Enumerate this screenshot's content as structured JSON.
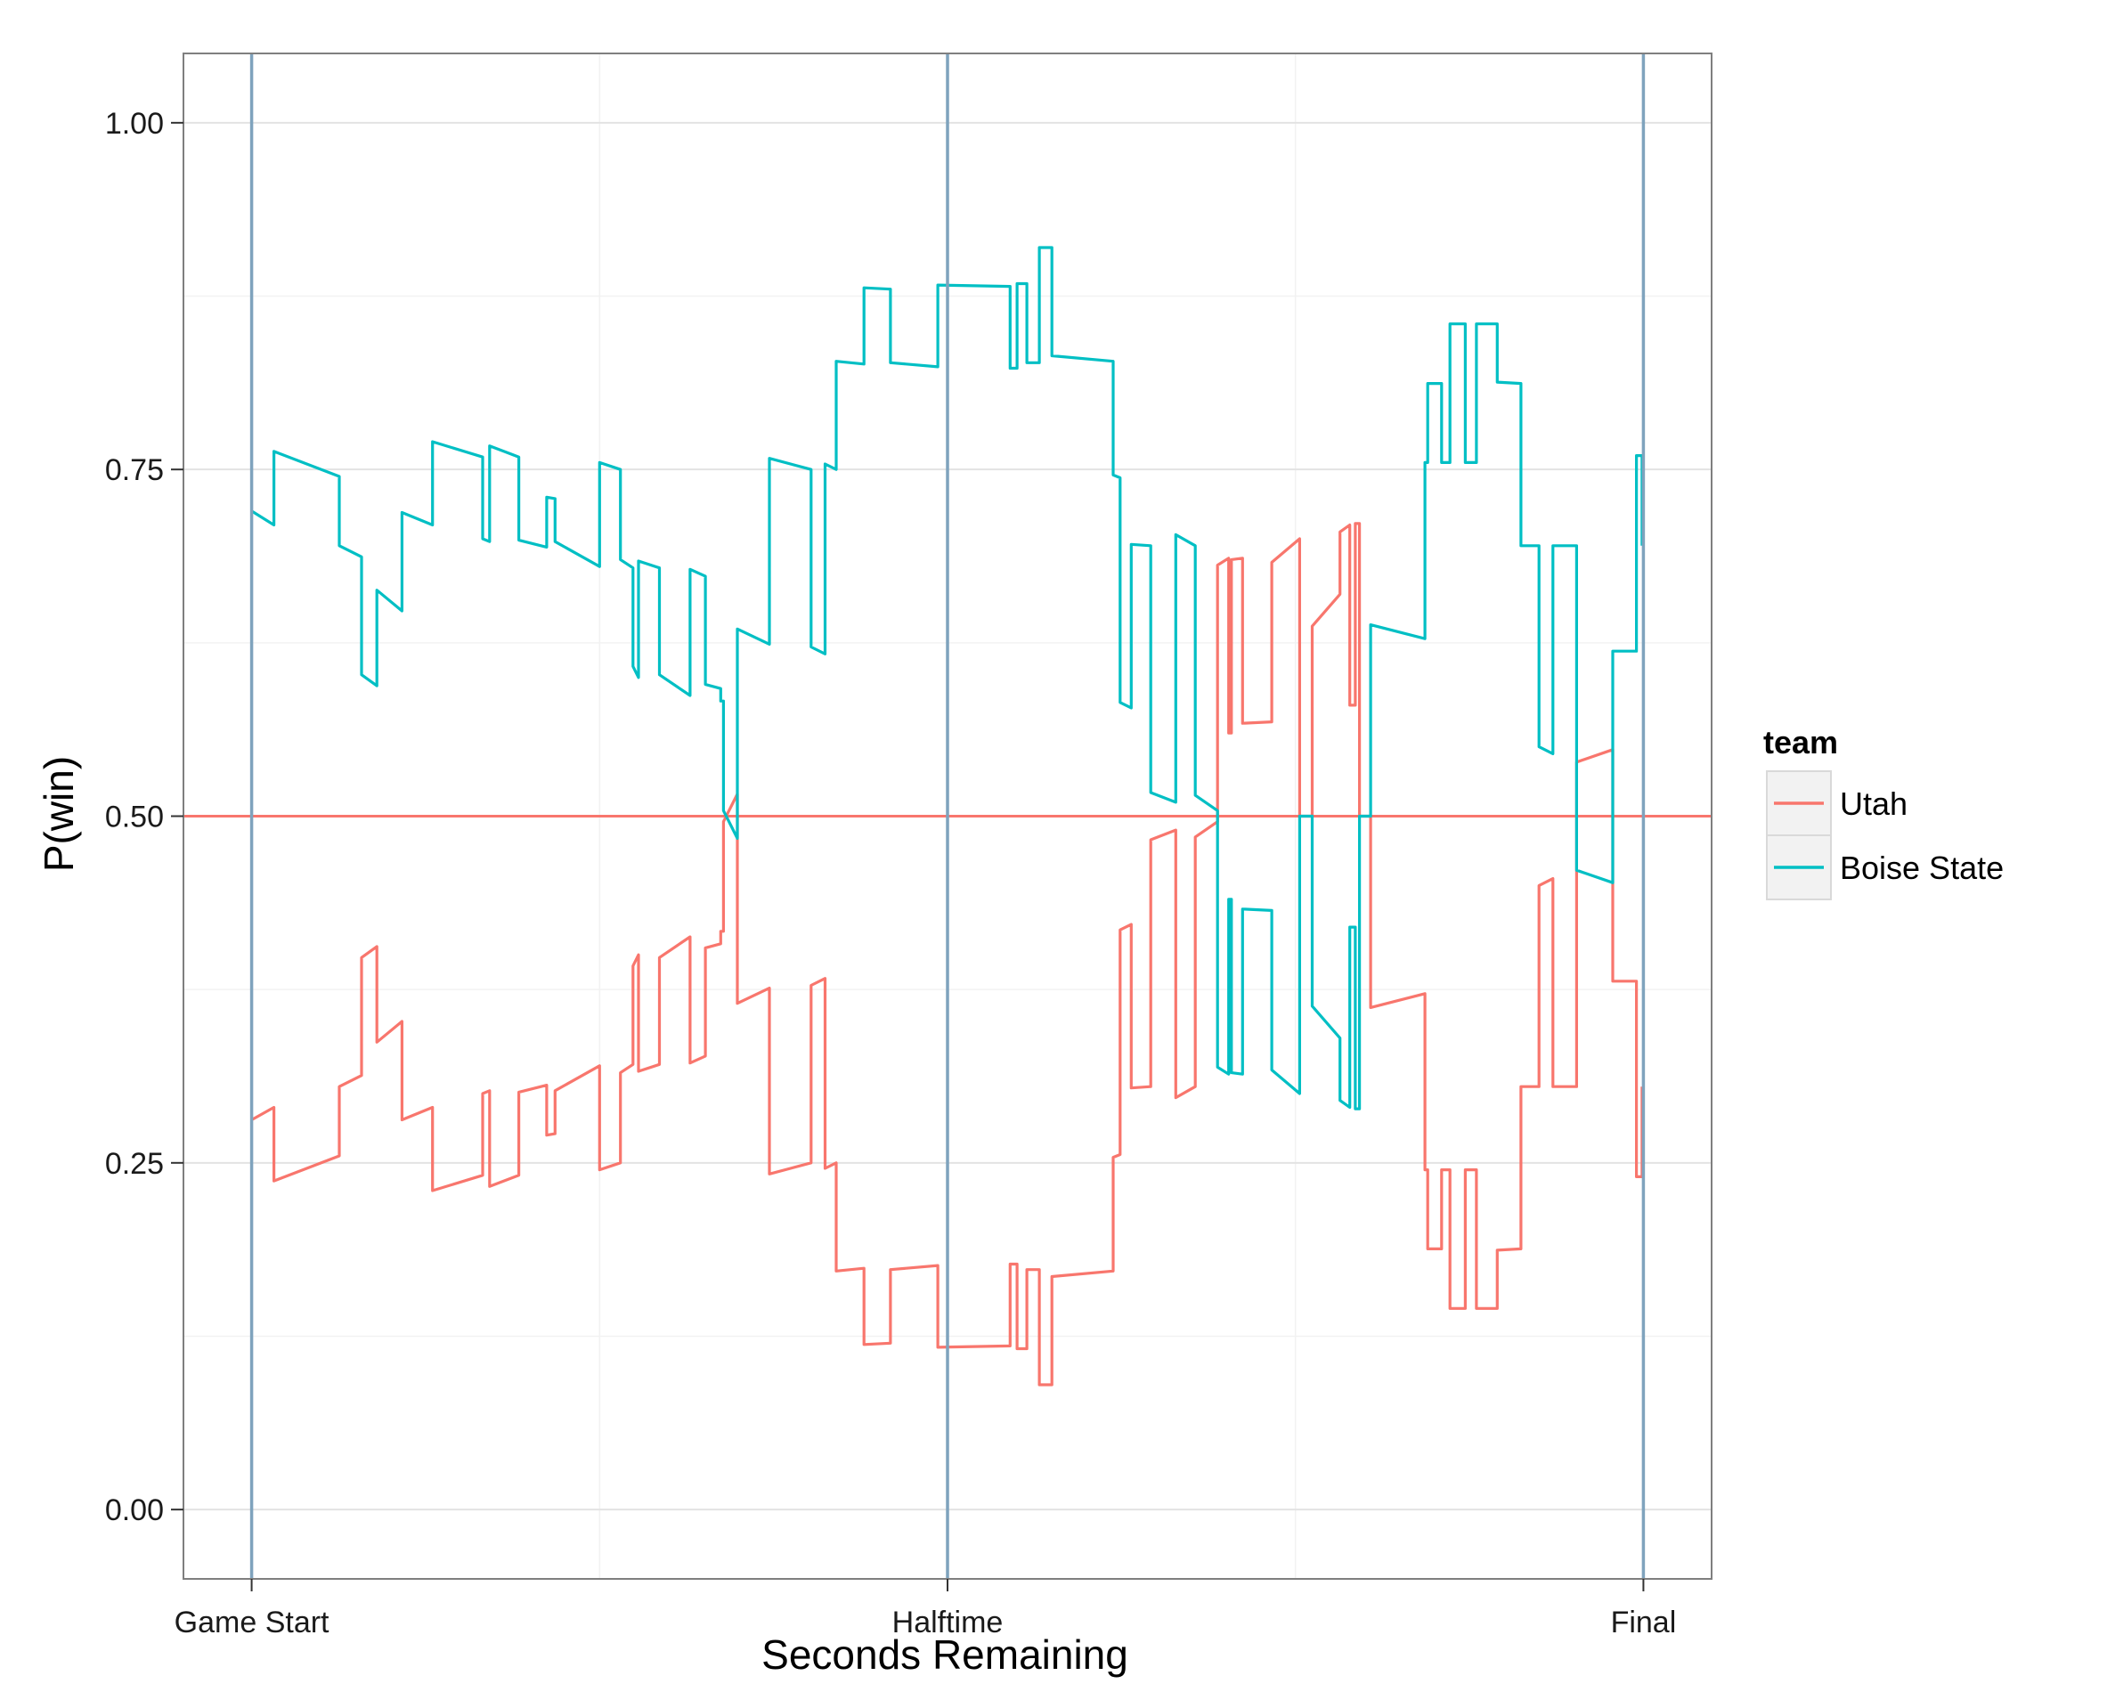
{
  "chart_data": {
    "type": "line",
    "title": "",
    "xlabel": "Seconds Remaining",
    "ylabel": "P(win)",
    "x_tick_labels": [
      "Game Start",
      "Halftime",
      "Final"
    ],
    "x_tick_fracs": [
      0,
      0.5,
      1
    ],
    "y_tick_labels": [
      "0.00",
      "0.25",
      "0.50",
      "0.75",
      "1.00"
    ],
    "y_ticks": [
      0,
      0.25,
      0.5,
      0.75,
      1
    ],
    "ylim": [
      -0.05,
      1.05
    ],
    "x_domain": [
      -0.049,
      1.049
    ],
    "grid": true,
    "reference_line": {
      "y": 0.5,
      "color": "#F8766D"
    },
    "marker_lines": {
      "fracs": [
        0,
        0.5,
        1
      ],
      "color": "#7FA3BD"
    },
    "legend": {
      "title": "team",
      "position": "right"
    },
    "series": [
      {
        "name": "Utah",
        "color": "#F8766D",
        "points": [
          [
            0,
            0.281
          ],
          [
            0.016,
            0.29
          ],
          [
            0.016,
            0.237
          ],
          [
            0.063,
            0.255
          ],
          [
            0.063,
            0.305
          ],
          [
            0.079,
            0.313
          ],
          [
            0.079,
            0.398
          ],
          [
            0.09,
            0.406
          ],
          [
            0.09,
            0.337
          ],
          [
            0.108,
            0.352
          ],
          [
            0.108,
            0.281
          ],
          [
            0.13,
            0.29
          ],
          [
            0.13,
            0.23
          ],
          [
            0.166,
            0.241
          ],
          [
            0.166,
            0.3
          ],
          [
            0.171,
            0.302
          ],
          [
            0.171,
            0.233
          ],
          [
            0.192,
            0.241
          ],
          [
            0.192,
            0.301
          ],
          [
            0.212,
            0.306
          ],
          [
            0.212,
            0.27
          ],
          [
            0.218,
            0.271
          ],
          [
            0.218,
            0.302
          ],
          [
            0.25,
            0.32
          ],
          [
            0.25,
            0.245
          ],
          [
            0.265,
            0.25
          ],
          [
            0.265,
            0.315
          ],
          [
            0.274,
            0.321
          ],
          [
            0.274,
            0.392
          ],
          [
            0.278,
            0.4
          ],
          [
            0.278,
            0.316
          ],
          [
            0.293,
            0.321
          ],
          [
            0.293,
            0.398
          ],
          [
            0.315,
            0.413
          ],
          [
            0.315,
            0.322
          ],
          [
            0.326,
            0.327
          ],
          [
            0.326,
            0.405
          ],
          [
            0.337,
            0.408
          ],
          [
            0.337,
            0.417
          ],
          [
            0.339,
            0.417
          ],
          [
            0.339,
            0.496
          ],
          [
            0.349,
            0.516
          ],
          [
            0.349,
            0.365
          ],
          [
            0.372,
            0.376
          ],
          [
            0.372,
            0.242
          ],
          [
            0.402,
            0.25
          ],
          [
            0.402,
            0.378
          ],
          [
            0.412,
            0.383
          ],
          [
            0.412,
            0.246
          ],
          [
            0.42,
            0.25
          ],
          [
            0.42,
            0.172
          ],
          [
            0.44,
            0.174
          ],
          [
            0.44,
            0.119
          ],
          [
            0.459,
            0.12
          ],
          [
            0.459,
            0.173
          ],
          [
            0.493,
            0.176
          ],
          [
            0.493,
            0.117
          ],
          [
            0.545,
            0.118
          ],
          [
            0.545,
            0.177
          ],
          [
            0.55,
            0.177
          ],
          [
            0.55,
            0.116
          ],
          [
            0.557,
            0.116
          ],
          [
            0.557,
            0.173
          ],
          [
            0.566,
            0.173
          ],
          [
            0.566,
            0.09
          ],
          [
            0.575,
            0.09
          ],
          [
            0.575,
            0.168
          ],
          [
            0.619,
            0.172
          ],
          [
            0.619,
            0.254
          ],
          [
            0.624,
            0.256
          ],
          [
            0.624,
            0.418
          ],
          [
            0.632,
            0.422
          ],
          [
            0.632,
            0.304
          ],
          [
            0.646,
            0.305
          ],
          [
            0.646,
            0.483
          ],
          [
            0.664,
            0.49
          ],
          [
            0.664,
            0.297
          ],
          [
            0.678,
            0.305
          ],
          [
            0.678,
            0.485
          ],
          [
            0.694,
            0.496
          ],
          [
            0.694,
            0.681
          ],
          [
            0.702,
            0.686
          ],
          [
            0.702,
            0.56
          ],
          [
            0.704,
            0.56
          ],
          [
            0.704,
            0.685
          ],
          [
            0.712,
            0.686
          ],
          [
            0.712,
            0.567
          ],
          [
            0.733,
            0.568
          ],
          [
            0.733,
            0.683
          ],
          [
            0.753,
            0.7
          ],
          [
            0.753,
            0.5
          ],
          [
            0.762,
            0.5
          ],
          [
            0.762,
            0.637
          ],
          [
            0.782,
            0.66
          ],
          [
            0.782,
            0.705
          ],
          [
            0.789,
            0.71
          ],
          [
            0.789,
            0.58
          ],
          [
            0.793,
            0.58
          ],
          [
            0.793,
            0.711
          ],
          [
            0.796,
            0.711
          ],
          [
            0.796,
            0.5
          ],
          [
            0.804,
            0.5
          ],
          [
            0.804,
            0.362
          ],
          [
            0.843,
            0.372
          ],
          [
            0.843,
            0.245
          ],
          [
            0.845,
            0.245
          ],
          [
            0.845,
            0.188
          ],
          [
            0.855,
            0.188
          ],
          [
            0.855,
            0.245
          ],
          [
            0.861,
            0.245
          ],
          [
            0.861,
            0.145
          ],
          [
            0.872,
            0.145
          ],
          [
            0.872,
            0.245
          ],
          [
            0.88,
            0.245
          ],
          [
            0.88,
            0.145
          ],
          [
            0.895,
            0.145
          ],
          [
            0.895,
            0.187
          ],
          [
            0.912,
            0.188
          ],
          [
            0.912,
            0.305
          ],
          [
            0.925,
            0.305
          ],
          [
            0.925,
            0.45
          ],
          [
            0.935,
            0.455
          ],
          [
            0.935,
            0.305
          ],
          [
            0.952,
            0.305
          ],
          [
            0.952,
            0.539
          ],
          [
            0.978,
            0.548
          ],
          [
            0.978,
            0.381
          ],
          [
            0.995,
            0.381
          ],
          [
            0.995,
            0.24
          ],
          [
            0.999,
            0.24
          ],
          [
            0.999,
            0.305
          ]
        ]
      },
      {
        "name": "Boise State",
        "color": "#00BFC4",
        "points": [
          [
            0,
            0.72
          ],
          [
            0.016,
            0.71
          ],
          [
            0.016,
            0.763
          ],
          [
            0.063,
            0.745
          ],
          [
            0.063,
            0.695
          ],
          [
            0.079,
            0.687
          ],
          [
            0.079,
            0.602
          ],
          [
            0.09,
            0.594
          ],
          [
            0.09,
            0.663
          ],
          [
            0.108,
            0.648
          ],
          [
            0.108,
            0.719
          ],
          [
            0.13,
            0.71
          ],
          [
            0.13,
            0.77
          ],
          [
            0.166,
            0.759
          ],
          [
            0.166,
            0.7
          ],
          [
            0.171,
            0.698
          ],
          [
            0.171,
            0.767
          ],
          [
            0.192,
            0.759
          ],
          [
            0.192,
            0.699
          ],
          [
            0.212,
            0.694
          ],
          [
            0.212,
            0.73
          ],
          [
            0.218,
            0.729
          ],
          [
            0.218,
            0.698
          ],
          [
            0.25,
            0.68
          ],
          [
            0.25,
            0.755
          ],
          [
            0.265,
            0.75
          ],
          [
            0.265,
            0.685
          ],
          [
            0.274,
            0.679
          ],
          [
            0.274,
            0.608
          ],
          [
            0.278,
            0.6
          ],
          [
            0.278,
            0.684
          ],
          [
            0.293,
            0.679
          ],
          [
            0.293,
            0.602
          ],
          [
            0.315,
            0.587
          ],
          [
            0.315,
            0.678
          ],
          [
            0.326,
            0.673
          ],
          [
            0.326,
            0.595
          ],
          [
            0.337,
            0.592
          ],
          [
            0.337,
            0.583
          ],
          [
            0.339,
            0.583
          ],
          [
            0.339,
            0.504
          ],
          [
            0.349,
            0.484
          ],
          [
            0.349,
            0.635
          ],
          [
            0.372,
            0.624
          ],
          [
            0.372,
            0.758
          ],
          [
            0.402,
            0.75
          ],
          [
            0.402,
            0.622
          ],
          [
            0.412,
            0.617
          ],
          [
            0.412,
            0.754
          ],
          [
            0.42,
            0.75
          ],
          [
            0.42,
            0.828
          ],
          [
            0.44,
            0.826
          ],
          [
            0.44,
            0.881
          ],
          [
            0.459,
            0.88
          ],
          [
            0.459,
            0.827
          ],
          [
            0.493,
            0.824
          ],
          [
            0.493,
            0.883
          ],
          [
            0.545,
            0.882
          ],
          [
            0.545,
            0.823
          ],
          [
            0.55,
            0.823
          ],
          [
            0.55,
            0.884
          ],
          [
            0.557,
            0.884
          ],
          [
            0.557,
            0.827
          ],
          [
            0.566,
            0.827
          ],
          [
            0.566,
            0.91
          ],
          [
            0.575,
            0.91
          ],
          [
            0.575,
            0.832
          ],
          [
            0.619,
            0.828
          ],
          [
            0.619,
            0.746
          ],
          [
            0.624,
            0.744
          ],
          [
            0.624,
            0.582
          ],
          [
            0.632,
            0.578
          ],
          [
            0.632,
            0.696
          ],
          [
            0.646,
            0.695
          ],
          [
            0.646,
            0.517
          ],
          [
            0.664,
            0.51
          ],
          [
            0.664,
            0.703
          ],
          [
            0.678,
            0.695
          ],
          [
            0.678,
            0.515
          ],
          [
            0.694,
            0.504
          ],
          [
            0.694,
            0.319
          ],
          [
            0.702,
            0.314
          ],
          [
            0.702,
            0.44
          ],
          [
            0.704,
            0.44
          ],
          [
            0.704,
            0.315
          ],
          [
            0.712,
            0.314
          ],
          [
            0.712,
            0.433
          ],
          [
            0.733,
            0.432
          ],
          [
            0.733,
            0.317
          ],
          [
            0.753,
            0.3
          ],
          [
            0.753,
            0.5
          ],
          [
            0.762,
            0.5
          ],
          [
            0.762,
            0.363
          ],
          [
            0.782,
            0.34
          ],
          [
            0.782,
            0.295
          ],
          [
            0.789,
            0.29
          ],
          [
            0.789,
            0.42
          ],
          [
            0.793,
            0.42
          ],
          [
            0.793,
            0.289
          ],
          [
            0.796,
            0.289
          ],
          [
            0.796,
            0.5
          ],
          [
            0.804,
            0.5
          ],
          [
            0.804,
            0.638
          ],
          [
            0.843,
            0.628
          ],
          [
            0.843,
            0.755
          ],
          [
            0.845,
            0.755
          ],
          [
            0.845,
            0.812
          ],
          [
            0.855,
            0.812
          ],
          [
            0.855,
            0.755
          ],
          [
            0.861,
            0.755
          ],
          [
            0.861,
            0.855
          ],
          [
            0.872,
            0.855
          ],
          [
            0.872,
            0.755
          ],
          [
            0.88,
            0.755
          ],
          [
            0.88,
            0.855
          ],
          [
            0.895,
            0.855
          ],
          [
            0.895,
            0.813
          ],
          [
            0.912,
            0.812
          ],
          [
            0.912,
            0.695
          ],
          [
            0.925,
            0.695
          ],
          [
            0.925,
            0.55
          ],
          [
            0.935,
            0.545
          ],
          [
            0.935,
            0.695
          ],
          [
            0.952,
            0.695
          ],
          [
            0.952,
            0.461
          ],
          [
            0.978,
            0.452
          ],
          [
            0.978,
            0.619
          ],
          [
            0.995,
            0.619
          ],
          [
            0.995,
            0.76
          ],
          [
            0.999,
            0.76
          ],
          [
            0.999,
            0.695
          ]
        ]
      }
    ]
  }
}
